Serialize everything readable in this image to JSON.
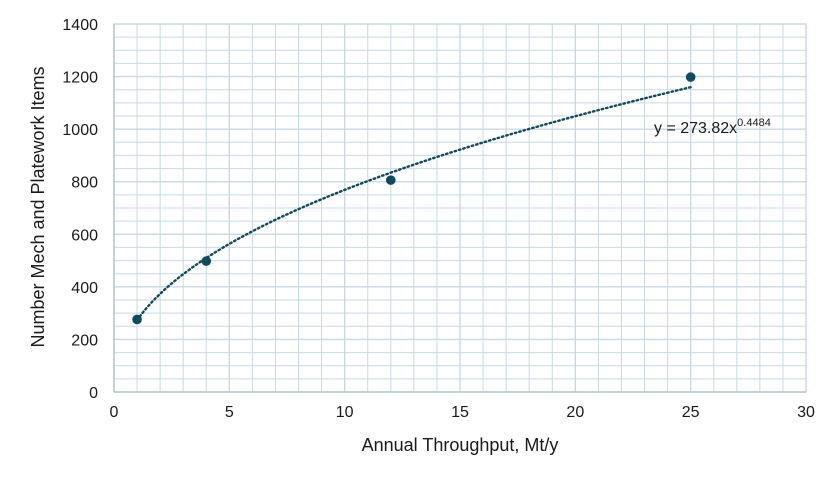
{
  "chart_data": {
    "type": "scatter",
    "title": "",
    "xlabel": "Annual Throughput, Mt/y",
    "ylabel": "Number Mech and Platework Items",
    "xlim": [
      0,
      30
    ],
    "ylim": [
      0,
      1400
    ],
    "x_major_ticks": [
      0,
      5,
      10,
      15,
      20,
      25,
      30
    ],
    "y_major_ticks": [
      0,
      200,
      400,
      600,
      800,
      1000,
      1200,
      1400
    ],
    "x_minor_step": 1,
    "y_minor_step": 50,
    "grid": true,
    "series": [
      {
        "points": [
          {
            "x": 1,
            "y": 276
          },
          {
            "x": 4,
            "y": 498
          },
          {
            "x": 12,
            "y": 806
          },
          {
            "x": 25,
            "y": 1198
          }
        ]
      }
    ],
    "trendline": {
      "type": "power",
      "coefficient": 273.82,
      "exponent": 0.4484,
      "x_range": [
        1,
        25
      ],
      "style": "dotted",
      "equation_base": "y = 273.82x",
      "equation_exponent": "0.4484"
    },
    "colors": {
      "marker": "#0f4a5f",
      "trendline": "#0f4a5f",
      "grid": "#c8d9e6",
      "axis": "#b8c8d4"
    }
  }
}
